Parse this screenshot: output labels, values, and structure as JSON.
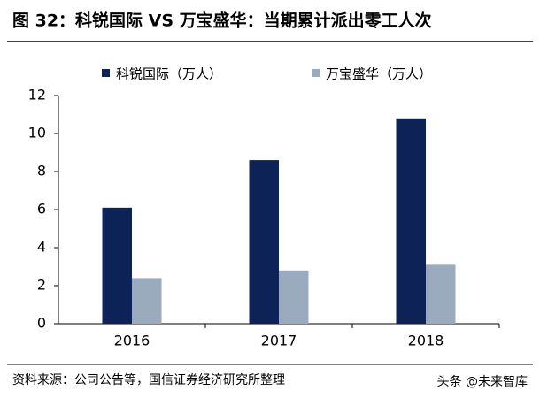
{
  "chart_data": {
    "type": "bar",
    "title": "图 32：科锐国际 VS 万宝盛华：当期累计派出零工人次",
    "categories": [
      "2016",
      "2017",
      "2018"
    ],
    "series": [
      {
        "name": "科锐国际（万人）",
        "color": "#0d2257",
        "values": [
          6.1,
          8.6,
          10.8
        ]
      },
      {
        "name": "万宝盛华（万人）",
        "color": "#9aabbd",
        "values": [
          2.4,
          2.8,
          3.1
        ]
      }
    ],
    "ylim": [
      0,
      12
    ],
    "yticks": [
      0,
      2,
      4,
      6,
      8,
      10,
      12
    ],
    "grid": false,
    "source": "资料来源：公司公告等，国信证券经济研究所整理",
    "watermark": "头条 @未来智库"
  }
}
